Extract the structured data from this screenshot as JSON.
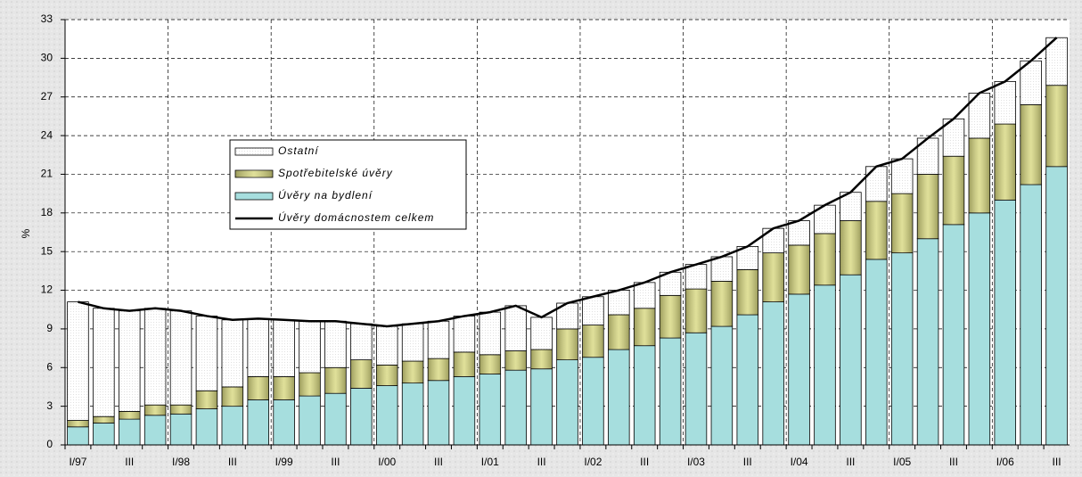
{
  "chart_data": {
    "type": "bar",
    "stacked": true,
    "y_label": "%",
    "categories": [
      "I/97",
      null,
      "III",
      null,
      "I/98",
      null,
      "III",
      null,
      "I/99",
      null,
      "III",
      null,
      "I/00",
      null,
      "III",
      null,
      "I/01",
      null,
      "III",
      null,
      "I/02",
      null,
      "III",
      null,
      "I/03",
      null,
      "III",
      null,
      "I/04",
      null,
      "III",
      null,
      "I/05",
      null,
      "III",
      null,
      "I/06",
      null,
      "III"
    ],
    "series": [
      {
        "name": "Úvěry na bydlení",
        "type": "bar",
        "color": "#a6dede",
        "values": [
          1.4,
          1.7,
          2.0,
          2.3,
          2.4,
          2.8,
          3.0,
          3.5,
          3.5,
          3.8,
          4.0,
          4.4,
          4.6,
          4.8,
          5.0,
          5.3,
          5.5,
          5.8,
          5.9,
          6.6,
          6.8,
          7.4,
          7.7,
          8.3,
          8.7,
          9.2,
          10.1,
          11.1,
          11.7,
          12.4,
          13.2,
          14.4,
          14.9,
          16.0,
          17.1,
          18.0,
          19.0,
          20.2,
          21.6
        ]
      },
      {
        "name": "Spotřebitelské úvěry",
        "type": "bar",
        "color": "#d8d880",
        "values": [
          0.5,
          0.5,
          0.6,
          0.8,
          0.7,
          1.4,
          1.5,
          1.8,
          1.8,
          1.8,
          2.0,
          2.2,
          1.6,
          1.7,
          1.7,
          1.9,
          1.5,
          1.5,
          1.5,
          2.4,
          2.5,
          2.7,
          2.9,
          3.3,
          3.4,
          3.5,
          3.5,
          3.8,
          3.8,
          4.0,
          4.2,
          4.5,
          4.6,
          5.0,
          5.3,
          5.8,
          5.9,
          6.2,
          6.3
        ]
      },
      {
        "name": "Ostatní",
        "type": "bar",
        "color": "#ffffff",
        "values": [
          9.2,
          8.4,
          7.8,
          7.5,
          7.3,
          5.8,
          5.2,
          4.5,
          4.4,
          4.0,
          3.6,
          2.8,
          3.0,
          2.9,
          2.9,
          2.8,
          3.3,
          3.5,
          2.5,
          2.0,
          2.2,
          1.9,
          2.0,
          1.8,
          1.9,
          1.9,
          1.8,
          1.9,
          1.9,
          2.2,
          2.2,
          2.7,
          2.7,
          2.8,
          2.9,
          3.5,
          3.3,
          3.4,
          3.7
        ]
      },
      {
        "name": "Úvěry domácnostem celkem",
        "type": "line",
        "color": "#000000",
        "values": [
          11.1,
          10.6,
          10.4,
          10.6,
          10.4,
          10.0,
          9.7,
          9.8,
          9.7,
          9.6,
          9.6,
          9.4,
          9.2,
          9.4,
          9.6,
          10.0,
          10.3,
          10.8,
          9.9,
          11.0,
          11.5,
          12.0,
          12.6,
          13.4,
          14.0,
          14.6,
          15.4,
          16.8,
          17.4,
          18.6,
          19.6,
          21.6,
          22.2,
          23.8,
          25.3,
          27.3,
          28.2,
          29.8,
          31.6
        ]
      }
    ],
    "ylim": [
      0,
      33
    ],
    "yticks": [
      0,
      3,
      6,
      9,
      12,
      15,
      18,
      21,
      24,
      27,
      30,
      33
    ],
    "grid": true
  }
}
